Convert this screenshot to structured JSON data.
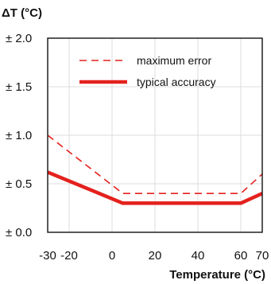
{
  "chart_data": {
    "type": "line",
    "ylabel": "ΔT (°C)",
    "xlabel": "Temperature (°C)",
    "xlim": [
      -30,
      70
    ],
    "ylim": [
      0,
      2.0
    ],
    "x_ticks": [
      -30,
      -20,
      0,
      20,
      40,
      60,
      70
    ],
    "x_tick_labels": [
      "-30",
      "-20",
      "0",
      "20",
      "40",
      "60",
      "70"
    ],
    "y_ticks": [
      0.0,
      0.5,
      1.0,
      1.5,
      2.0
    ],
    "y_tick_labels": [
      "± 0.0",
      "± 0.5",
      "± 1.0",
      "± 1.5",
      "± 2.0"
    ],
    "grid": true,
    "legend_position": "top-right",
    "series": [
      {
        "name": "maximum error",
        "style": "dashed",
        "color": "#e4211d",
        "x": [
          -30,
          5,
          60,
          70
        ],
        "y": [
          1.0,
          0.4,
          0.4,
          0.6
        ]
      },
      {
        "name": "typical accuracy",
        "style": "solid-thick",
        "color": "#e4211d",
        "x": [
          -30,
          5,
          60,
          70
        ],
        "y": [
          0.62,
          0.3,
          0.3,
          0.4
        ]
      }
    ]
  }
}
